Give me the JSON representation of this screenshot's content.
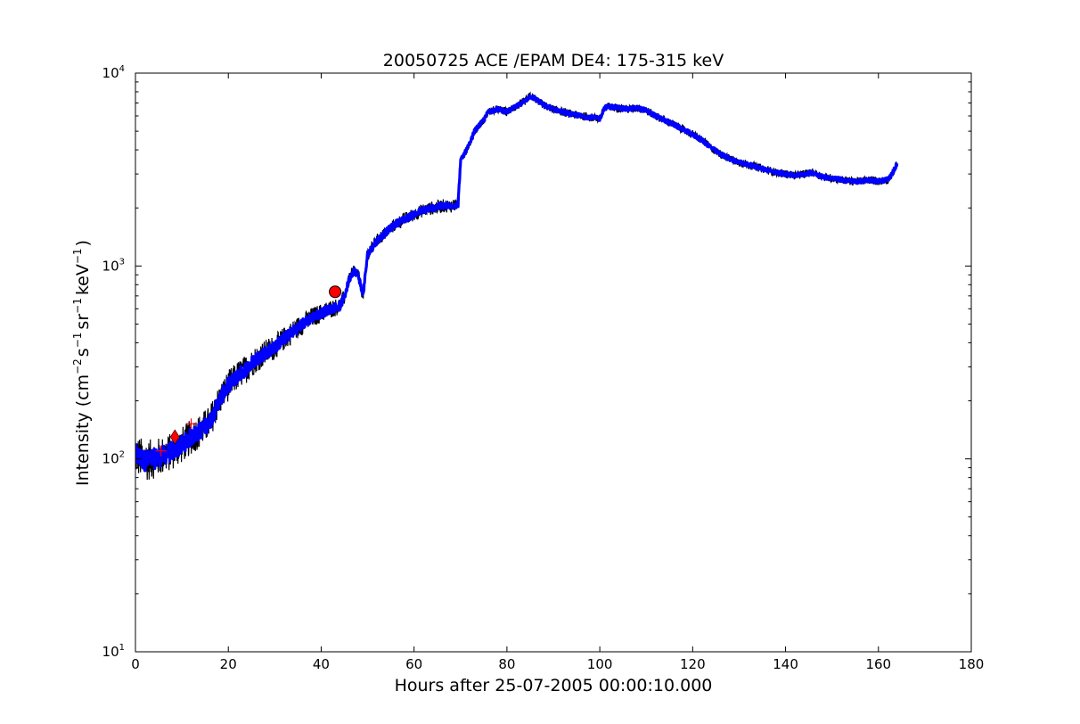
{
  "chart_data": {
    "type": "line",
    "title": "20050725 ACE /EPAM DE4: 175-315 keV",
    "xlabel": "Hours after 25-07-2005 00:00:10.000",
    "ylabel_parts": {
      "pre": "Intensity (cm",
      "sup1": "−2",
      "mid1": "s",
      "sup2": "−1",
      "mid2": "sr",
      "sup3": "−1",
      "mid3": "keV",
      "sup4": "−1",
      "post": ")"
    },
    "xlim": [
      0,
      180
    ],
    "ylim": [
      10,
      10000
    ],
    "yscale": "log",
    "grid": false,
    "x_ticks": [
      "0",
      "20",
      "40",
      "60",
      "80",
      "100",
      "120",
      "140",
      "160",
      "180"
    ],
    "x_tick_values": [
      0,
      20,
      40,
      60,
      80,
      100,
      120,
      140,
      160,
      180
    ],
    "y_ticks": [
      {
        "value": 10,
        "base": "10",
        "exp": "1"
      },
      {
        "value": 100,
        "base": "10",
        "exp": "2"
      },
      {
        "value": 1000,
        "base": "10",
        "exp": "3"
      },
      {
        "value": 10000,
        "base": "10",
        "exp": "4"
      }
    ],
    "series": [
      {
        "role": "measurement",
        "color": "#000000",
        "x": [
          0,
          2,
          4,
          6,
          8,
          10,
          12,
          14,
          16,
          18,
          20,
          22,
          24,
          26,
          28,
          30,
          32,
          34,
          36,
          38,
          40,
          42,
          44,
          45,
          46,
          47,
          48,
          49,
          50,
          51,
          52,
          54,
          56,
          58,
          60,
          62,
          64,
          66,
          68,
          69.5,
          70,
          72,
          73,
          75,
          76,
          78,
          80,
          82,
          84,
          85,
          86,
          88,
          90,
          92,
          94,
          96,
          98,
          100,
          101,
          102,
          104,
          106,
          108,
          110,
          112,
          114,
          116,
          118,
          120,
          122,
          124,
          126,
          128,
          130,
          132,
          134,
          136,
          138,
          140,
          142,
          144,
          146,
          148,
          150,
          152,
          154,
          156,
          158,
          160,
          162,
          163,
          164
        ],
        "y": [
          105,
          98,
          100,
          104,
          110,
          118,
          130,
          140,
          155,
          200,
          240,
          270,
          295,
          330,
          355,
          380,
          420,
          460,
          500,
          540,
          570,
          600,
          620,
          690,
          850,
          950,
          900,
          700,
          1150,
          1250,
          1350,
          1500,
          1650,
          1750,
          1850,
          1950,
          2000,
          2050,
          2050,
          2100,
          3500,
          4300,
          5000,
          5700,
          6300,
          6500,
          6300,
          6700,
          7200,
          7600,
          7400,
          6800,
          6500,
          6300,
          6100,
          6000,
          5900,
          5800,
          6600,
          6700,
          6600,
          6500,
          6600,
          6400,
          6000,
          5700,
          5400,
          5100,
          4800,
          4500,
          4100,
          3800,
          3600,
          3450,
          3350,
          3250,
          3150,
          3050,
          3000,
          2950,
          3000,
          3050,
          2900,
          2850,
          2800,
          2750,
          2750,
          2800,
          2750,
          2800,
          3000,
          3400
        ]
      }
    ],
    "markers": [
      {
        "shape": "circle",
        "x": 43,
        "y": 735,
        "color": "#ff0000"
      },
      {
        "shape": "diamond",
        "x": 8.5,
        "y": 130,
        "color": "#ff0000"
      },
      {
        "shape": "plus",
        "x": 5.5,
        "y": 110,
        "color": "#ff0000"
      },
      {
        "shape": "plus",
        "x": 12,
        "y": 152,
        "color": "#ff0000"
      }
    ],
    "colors": {
      "envelope": "#000000",
      "smoothed": "#0000ff",
      "marker": "#ff0000"
    }
  }
}
